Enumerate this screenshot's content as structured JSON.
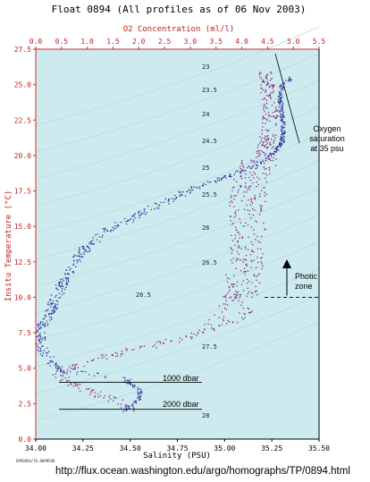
{
  "chart_data": {
    "type": "scatter",
    "title": "Float 0894  (All profiles as of 06 Nov 2003)",
    "xlabel": "Salinity (PSU)",
    "x2label": "O2 Concentration (ml/l)",
    "ylabel": "Insitu Temperature (°C)",
    "xlim": [
      34.0,
      35.5
    ],
    "x2lim": [
      0.0,
      5.5
    ],
    "ylim": [
      0.0,
      27.5
    ],
    "x_ticks": [
      "34.00",
      "34.25",
      "34.50",
      "34.75",
      "35.00",
      "35.25",
      "35.50"
    ],
    "x2_ticks": [
      "0.0",
      "0.5",
      "1.0",
      "1.5",
      "2.0",
      "2.5",
      "3.0",
      "3.5",
      "4.0",
      "4.5",
      "5.0",
      "5.5"
    ],
    "y_ticks": [
      "0.0",
      "2.5",
      "5.0",
      "7.5",
      "10.0",
      "12.5",
      "15.0",
      "17.5",
      "20.0",
      "22.5",
      "25.0",
      "27.5"
    ],
    "grid": false,
    "background": "#cdebef",
    "colors": {
      "salinity": "#2a2f9a",
      "oxygen": "#8a1f7a",
      "axis_top_left": "#d42a2a"
    },
    "series": [
      {
        "name": "Salinity profile",
        "axis": "salinity",
        "points": [
          [
            34.47,
            2.1
          ],
          [
            34.54,
            2.8
          ],
          [
            34.55,
            3.5
          ],
          [
            34.47,
            4.3
          ],
          [
            34.32,
            4.6
          ],
          [
            34.13,
            4.8
          ],
          [
            34.08,
            5.5
          ],
          [
            34.04,
            6.2
          ],
          [
            34.02,
            7.0
          ],
          [
            34.03,
            8.0
          ],
          [
            34.07,
            9.0
          ],
          [
            34.12,
            10.5
          ],
          [
            34.18,
            12.0
          ],
          [
            34.26,
            13.5
          ],
          [
            34.38,
            14.8
          ],
          [
            34.55,
            15.9
          ],
          [
            34.72,
            17.0
          ],
          [
            34.88,
            18.0
          ],
          [
            35.02,
            18.6
          ],
          [
            35.15,
            19.3
          ],
          [
            35.25,
            20.0
          ],
          [
            35.3,
            21.0
          ],
          [
            35.31,
            22.0
          ],
          [
            35.3,
            23.0
          ],
          [
            35.29,
            24.0
          ],
          [
            35.3,
            25.0
          ],
          [
            35.35,
            25.5
          ]
        ]
      },
      {
        "name": "Oxygen profile",
        "axis": "oxygen",
        "points": [
          [
            1.88,
            2.1
          ],
          [
            1.5,
            2.8
          ],
          [
            1.0,
            3.5
          ],
          [
            0.5,
            4.3
          ],
          [
            0.45,
            4.8
          ],
          [
            0.9,
            5.4
          ],
          [
            1.6,
            6.1
          ],
          [
            2.3,
            6.7
          ],
          [
            3.0,
            7.3
          ],
          [
            3.5,
            8.0
          ],
          [
            3.85,
            9.0
          ],
          [
            4.0,
            10.5
          ],
          [
            4.05,
            12.5
          ],
          [
            4.1,
            14.5
          ],
          [
            4.1,
            16.5
          ],
          [
            4.15,
            18.5
          ],
          [
            4.4,
            20.0
          ],
          [
            4.5,
            21.5
          ],
          [
            4.55,
            23.0
          ],
          [
            4.5,
            24.5
          ],
          [
            4.45,
            26.0
          ]
        ]
      }
    ],
    "density_labels": [
      "23",
      "23.5",
      "24",
      "24.5",
      "25",
      "25.5",
      "26",
      "26.5",
      "26.5",
      "27",
      "27.5",
      "28"
    ],
    "annotations": {
      "oxygen_saturation": "Oxygen saturation at 35 psu",
      "photic_zone": "Photic zone",
      "dbar_1000": "1000 dbar",
      "dbar_2000": "2000 dbar"
    },
    "reference_lines": {
      "dbar_1000_temp": 4.0,
      "dbar_2000_temp": 2.1,
      "photic_zone_temp": 10.0
    },
    "footer_code": "EMP0894/T0.009M50B",
    "url": "http://flux.ocean.washington.edu/argo/homographs/TP/0894.html"
  }
}
